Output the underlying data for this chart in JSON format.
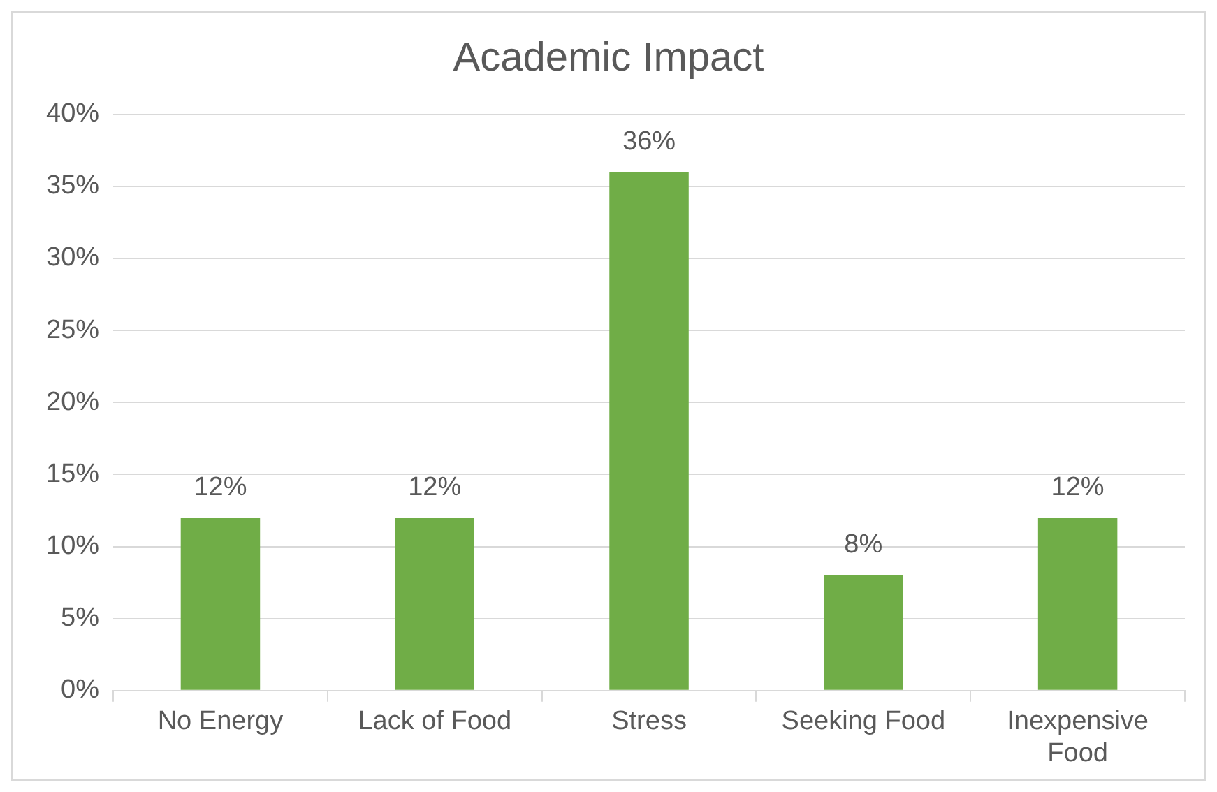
{
  "chart_data": {
    "type": "bar",
    "title": "Academic Impact",
    "categories": [
      "No Energy",
      "Lack of Food",
      "Stress",
      "Seeking Food",
      "Inexpensive Food"
    ],
    "values": [
      12,
      12,
      36,
      8,
      12
    ],
    "value_labels": [
      "12%",
      "12%",
      "36%",
      "8%",
      "12%"
    ],
    "color": "#70ad47",
    "ylim": [
      0,
      40
    ],
    "yticks": [
      {
        "value": 0,
        "label": "0%"
      },
      {
        "value": 5,
        "label": "5%"
      },
      {
        "value": 10,
        "label": "10%"
      },
      {
        "value": 15,
        "label": "15%"
      },
      {
        "value": 20,
        "label": "20%"
      },
      {
        "value": 25,
        "label": "25%"
      },
      {
        "value": 30,
        "label": "30%"
      },
      {
        "value": 35,
        "label": "35%"
      },
      {
        "value": 40,
        "label": "40%"
      }
    ],
    "grid": "y",
    "legend": false
  }
}
